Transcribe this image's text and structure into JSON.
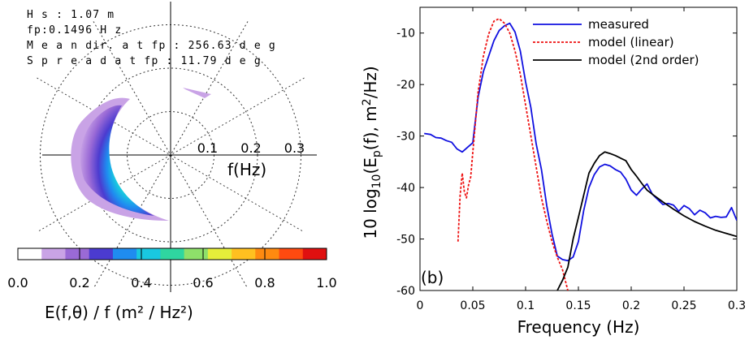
{
  "chart_data": [
    {
      "type": "polar-contour",
      "annotations": [
        "H s : 1.07 m",
        "fp:0.1496  H z",
        "M e a n  dir.  a t fp : 256.63  d e g",
        "S p r e a d  a t fp : 11.79  d e g"
      ],
      "radial_ticks": [
        "0.1",
        "0.2",
        "0.3"
      ],
      "radial_label": "f(Hz)",
      "rlim": [
        0,
        0.35
      ],
      "colorbar": {
        "ticks": [
          "0.0",
          "0.2",
          "0.4",
          "0.6",
          "0.8",
          "1.0"
        ],
        "range": [
          0,
          1
        ],
        "colors": [
          "#ffffff",
          "#c9a3e6",
          "#9a6ad6",
          "#4b3bd0",
          "#1f8cf0",
          "#19c8e0",
          "#2fd6a0",
          "#8ee06a",
          "#e6ee3a",
          "#ffc020",
          "#ff8a10",
          "#ff4a10",
          "#e01010"
        ]
      },
      "title": "E(f,θ) / f  (m² / Hz²)"
    },
    {
      "type": "line",
      "panel_label": "(b)",
      "xlabel": "Frequency (Hz)",
      "ylabel": "10 log10(Ep(f), m²/Hz)",
      "xlim": [
        0,
        0.3
      ],
      "ylim": [
        -60,
        -5
      ],
      "x_ticks": [
        "0",
        "0.05",
        "0.1",
        "0.15",
        "0.2",
        "0.25",
        "0.3"
      ],
      "y_ticks": [
        "-60",
        "-50",
        "-40",
        "-30",
        "-20",
        "-10"
      ],
      "legend_position": "top-right",
      "series": [
        {
          "name": "measured",
          "color": "#1010e0",
          "style": "solid",
          "x": [
            0.004,
            0.01,
            0.015,
            0.02,
            0.025,
            0.03,
            0.035,
            0.04,
            0.045,
            0.05,
            0.055,
            0.06,
            0.065,
            0.07,
            0.075,
            0.08,
            0.085,
            0.09,
            0.095,
            0.1,
            0.105,
            0.11,
            0.115,
            0.12,
            0.125,
            0.13,
            0.135,
            0.14,
            0.145,
            0.15,
            0.155,
            0.16,
            0.165,
            0.17,
            0.175,
            0.18,
            0.185,
            0.19,
            0.195,
            0.2,
            0.205,
            0.21,
            0.215,
            0.22,
            0.225,
            0.23,
            0.235,
            0.24,
            0.245,
            0.25,
            0.255,
            0.26,
            0.265,
            0.27,
            0.275,
            0.28,
            0.285,
            0.29,
            0.295,
            0.3
          ],
          "y": [
            -29.5,
            -29.7,
            -30.3,
            -30.4,
            -30.9,
            -31.2,
            -32.5,
            -33.1,
            -32.2,
            -31.3,
            -22.5,
            -17.5,
            -14.5,
            -11.5,
            -9.5,
            -8.6,
            -8.1,
            -9.8,
            -13.5,
            -19.5,
            -24.5,
            -31.5,
            -36.5,
            -43.5,
            -49,
            -53.3,
            -54,
            -54.2,
            -53.5,
            -50.5,
            -44.5,
            -40,
            -37.5,
            -36,
            -35.5,
            -35.8,
            -36.5,
            -37,
            -38.4,
            -40.5,
            -41.5,
            -40.3,
            -39.3,
            -41.3,
            -42.3,
            -43.3,
            -43.1,
            -43.4,
            -44.6,
            -43.5,
            -44.1,
            -45.3,
            -44.4,
            -44.9,
            -45.9,
            -45.6,
            -45.8,
            -45.7,
            -43.9,
            -46.4
          ]
        },
        {
          "name": "model (linear)",
          "color": "#ee1010",
          "style": "dashed",
          "x": [
            0.036,
            0.038,
            0.04,
            0.042,
            0.044,
            0.046,
            0.048,
            0.05,
            0.055,
            0.06,
            0.065,
            0.07,
            0.075,
            0.08,
            0.085,
            0.09,
            0.095,
            0.1,
            0.105,
            0.11,
            0.115,
            0.12,
            0.125,
            0.13,
            0.135,
            0.14
          ],
          "y": [
            -50.5,
            -41.5,
            -37.2,
            -40.8,
            -42,
            -39.5,
            -38,
            -33.2,
            -21.5,
            -14.5,
            -10.2,
            -7.7,
            -7.2,
            -8.1,
            -10,
            -13.5,
            -18,
            -24,
            -30,
            -36,
            -42,
            -46.5,
            -50.5,
            -53.5,
            -56,
            -60
          ]
        },
        {
          "name": "model (2nd order)",
          "color": "#000000",
          "style": "solid",
          "x": [
            0.13,
            0.135,
            0.14,
            0.145,
            0.15,
            0.155,
            0.16,
            0.165,
            0.17,
            0.175,
            0.18,
            0.185,
            0.19,
            0.195,
            0.2,
            0.205,
            0.21,
            0.215,
            0.22,
            0.23,
            0.24,
            0.25,
            0.26,
            0.27,
            0.28,
            0.29,
            0.3
          ],
          "y": [
            -60,
            -58,
            -55.5,
            -50,
            -45.8,
            -41.5,
            -37.2,
            -35.3,
            -33.8,
            -33.1,
            -33.4,
            -33.8,
            -34.3,
            -34.8,
            -36.5,
            -37.8,
            -39.2,
            -40.5,
            -41.3,
            -42.8,
            -44.2,
            -45.5,
            -46.6,
            -47.5,
            -48.3,
            -48.9,
            -49.5
          ]
        }
      ]
    }
  ]
}
